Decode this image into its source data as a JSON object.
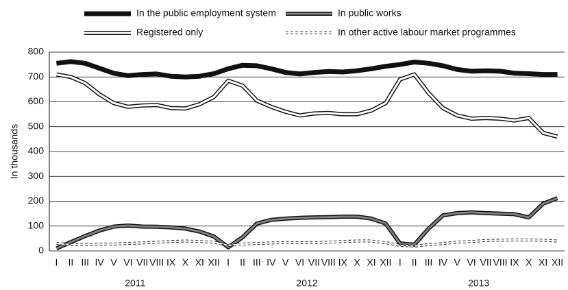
{
  "chart_data": {
    "type": "line",
    "y_label": "In thousands",
    "categories": [
      "I",
      "II",
      "III",
      "IV",
      "V",
      "VI",
      "VII",
      "VIII",
      "IX",
      "X",
      "XI",
      "XII",
      "I",
      "II",
      "III",
      "IV",
      "V",
      "VI",
      "VII",
      "VIII",
      "IX",
      "X",
      "XI",
      "XII",
      "I",
      "II",
      "III",
      "IV",
      "V",
      "VI",
      "VII",
      "VIII",
      "IX",
      "X",
      "XI",
      "XII"
    ],
    "years": [
      "2011",
      "2012",
      "2013"
    ],
    "ylim": [
      0,
      800
    ],
    "yticks": [
      0,
      100,
      200,
      300,
      400,
      500,
      600,
      700,
      800
    ],
    "grid": true,
    "series": [
      {
        "name": "In the public employment system",
        "color": "#111111",
        "line_style": "solid",
        "values": [
          755,
          762,
          755,
          735,
          715,
          705,
          710,
          712,
          703,
          700,
          703,
          713,
          733,
          747,
          745,
          733,
          718,
          712,
          718,
          722,
          720,
          725,
          733,
          743,
          750,
          760,
          755,
          745,
          730,
          723,
          725,
          723,
          715,
          713,
          710,
          710
        ]
      },
      {
        "name": "In public works",
        "color": "#808080",
        "line_style": "double",
        "values": [
          10,
          35,
          60,
          82,
          98,
          102,
          98,
          97,
          95,
          90,
          78,
          58,
          15,
          55,
          110,
          125,
          130,
          133,
          135,
          136,
          138,
          138,
          130,
          110,
          30,
          25,
          90,
          143,
          152,
          155,
          152,
          150,
          148,
          135,
          190,
          212
        ]
      },
      {
        "name": "Registered only",
        "color": "#ffffff",
        "line_style": "double",
        "values": [
          710,
          700,
          675,
          630,
          595,
          580,
          585,
          587,
          575,
          573,
          590,
          620,
          685,
          665,
          605,
          580,
          560,
          545,
          553,
          555,
          550,
          550,
          565,
          595,
          690,
          710,
          635,
          575,
          545,
          532,
          535,
          532,
          525,
          535,
          475,
          460
        ]
      },
      {
        "name": "In other active labour market programmes",
        "color": "#ffffff",
        "line_style": "dashed",
        "values": [
          30,
          25,
          25,
          27,
          28,
          30,
          32,
          35,
          38,
          40,
          38,
          35,
          22,
          28,
          30,
          32,
          33,
          33,
          33,
          35,
          38,
          40,
          40,
          33,
          22,
          20,
          25,
          30,
          35,
          38,
          42,
          43,
          44,
          44,
          43,
          40
        ]
      }
    ]
  }
}
